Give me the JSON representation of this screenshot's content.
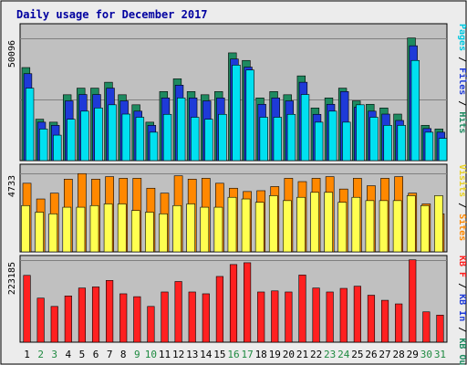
{
  "chart_data": {
    "type": "bar",
    "title": "Daily usage for December 2017",
    "categories": [
      "1",
      "2",
      "3",
      "4",
      "5",
      "6",
      "7",
      "8",
      "9",
      "10",
      "11",
      "12",
      "13",
      "14",
      "15",
      "16",
      "17",
      "18",
      "19",
      "20",
      "21",
      "22",
      "23",
      "24",
      "25",
      "26",
      "27",
      "28",
      "29",
      "30",
      "31"
    ],
    "weekend_days": [
      "2",
      "3",
      "9",
      "10",
      "16",
      "17",
      "23",
      "24",
      "30",
      "31"
    ],
    "panels": [
      {
        "id": "top",
        "max_label": "50096",
        "ylim": [
          0,
          55900
        ],
        "right_label_parts": [
          {
            "text": "Pages",
            "color": "#00c8e0"
          },
          {
            "text": " / ",
            "color": "#000000"
          },
          {
            "text": "Files",
            "color": "#1e3ad8"
          },
          {
            "text": " / ",
            "color": "#000000"
          },
          {
            "text": "Hits",
            "color": "#1e8a60"
          }
        ],
        "series": [
          {
            "name": "Hits",
            "color": "#1e8a60",
            "values": [
              38000,
              16900,
              15700,
              26900,
              29600,
              29600,
              32000,
              26900,
              22800,
              15700,
              28200,
              33400,
              28200,
              26900,
              28200,
              44000,
              40900,
              25600,
              28200,
              26900,
              34600,
              21500,
              25600,
              29600,
              24400,
              23000,
              21500,
              19000,
              50096,
              14400,
              12900
            ]
          },
          {
            "name": "Files",
            "color": "#1e3ad8",
            "values": [
              35500,
              15700,
              14400,
              24400,
              27000,
              27000,
              29600,
              24400,
              20200,
              14400,
              25600,
              30800,
              25600,
              24400,
              25600,
              41500,
              38200,
              23000,
              25600,
              24400,
              32000,
              18900,
              23000,
              28200,
              21800,
              20200,
              19000,
              16400,
              46900,
              13100,
              11600
            ]
          },
          {
            "name": "Pages",
            "color": "#00e0f0",
            "values": [
              29600,
              12900,
              10400,
              16900,
              20200,
              21500,
              22800,
              19000,
              17700,
              11600,
              18900,
              25600,
              17700,
              16900,
              18900,
              39000,
              37000,
              17700,
              17700,
              18900,
              27000,
              15700,
              20200,
              15700,
              22800,
              17700,
              14400,
              14400,
              40900,
              11600,
              9100
            ]
          }
        ]
      },
      {
        "id": "middle",
        "max_label": "4733",
        "ylim": [
          0,
          5300
        ],
        "right_label_parts": [
          {
            "text": "Visits",
            "color": "#e8d020"
          },
          {
            "text": " / ",
            "color": "#000000"
          },
          {
            "text": "Sites",
            "color": "#ff8800"
          }
        ],
        "series": [
          {
            "name": "Sites",
            "color": "#ff8800",
            "values": [
              4150,
              3200,
              3550,
              4400,
              4733,
              4400,
              4550,
              4450,
              4450,
              3850,
              3550,
              4600,
              4400,
              4450,
              4150,
              3850,
              3650,
              3700,
              3950,
              4450,
              4250,
              4450,
              4550,
              3800,
              4450,
              4000,
              4450,
              4550,
              3550,
              2900,
              2300
            ]
          },
          {
            "name": "Visits",
            "color": "#ffff50",
            "values": [
              2800,
              2400,
              2300,
              2700,
              2700,
              2800,
              2900,
              2900,
              2500,
              2400,
              2300,
              2800,
              2900,
              2700,
              2700,
              3300,
              3200,
              3000,
              3400,
              3100,
              3300,
              3600,
              3600,
              3000,
              3300,
              3100,
              3100,
              3100,
              3400,
              2800,
              3400
            ]
          }
        ]
      },
      {
        "id": "bottom",
        "max_label": "223185",
        "ylim": [
          0,
          240000
        ],
        "right_label_parts": [
          {
            "text": "KB F",
            "color": "#ff2020"
          },
          {
            "text": " / ",
            "color": "#000000"
          },
          {
            "text": "KB In",
            "color": "#1e3ad8"
          },
          {
            "text": " / ",
            "color": "#000000"
          },
          {
            "text": "KB Out",
            "color": "#1e8a60"
          }
        ],
        "series": [
          {
            "name": "KB F",
            "color": "#ff2020",
            "values": [
              185000,
              122000,
              99000,
              128000,
              150000,
              153000,
              171000,
              134000,
              126000,
              99000,
              139000,
              168000,
              139000,
              134000,
              182000,
              215000,
              220000,
              139000,
              142000,
              139000,
              186000,
              150000,
              139000,
              149000,
              155000,
              130000,
              116000,
              106000,
              228000,
              84000,
              75000
            ]
          }
        ]
      }
    ]
  }
}
